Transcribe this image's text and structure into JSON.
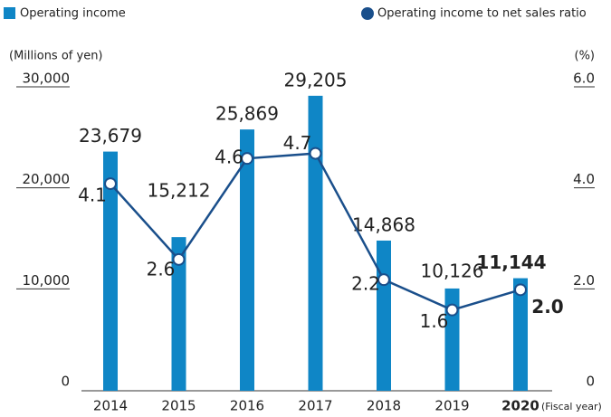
{
  "chart_data": {
    "type": "bar_line",
    "legend": [
      "Operating income",
      "Operating income to net sales ratio"
    ],
    "y_label": "(Millions of yen)",
    "y2_label": "(%)",
    "x_label": "(Fiscal year)",
    "categories": [
      "2014",
      "2015",
      "2016",
      "2017",
      "2018",
      "2019",
      "2020"
    ],
    "series": [
      {
        "name": "Operating income",
        "type": "bar",
        "color": "#0f86c6",
        "values": [
          23679,
          15212,
          25869,
          29205,
          14868,
          10126,
          11144
        ],
        "value_labels": [
          "23,679",
          "15,212",
          "25,869",
          "29,205",
          "14,868",
          "10,126",
          "11,144"
        ]
      },
      {
        "name": "Operating income to net sales ratio",
        "type": "line",
        "axis": "y2",
        "color": "#1a4f8b",
        "values": [
          4.1,
          2.6,
          4.6,
          4.7,
          2.2,
          1.6,
          2.0
        ],
        "value_labels": [
          "4.1",
          "2.6",
          "4.6",
          "4.7",
          "2.2",
          "1.6",
          "2.0"
        ]
      }
    ],
    "ylim": [
      0,
      30000
    ],
    "yticks": [
      0,
      {
        "value": 10000,
        "label": "10,000"
      },
      {
        "value": 20000,
        "label": "20,000"
      },
      {
        "value": 30000,
        "label": "30,000"
      }
    ],
    "y2lim": [
      0,
      6
    ],
    "y2ticks": [
      0,
      {
        "value": 2,
        "label": "2.0"
      },
      {
        "value": 4,
        "label": "4.0"
      },
      {
        "value": 6,
        "label": "6.0"
      }
    ]
  }
}
